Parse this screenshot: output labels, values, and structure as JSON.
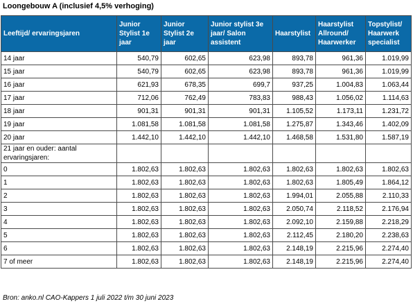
{
  "title": "Loongebouw A (inclusief 4,5% verhoging)",
  "headers": [
    "Leeftijd/ ervaringsjaren",
    "Junior Stylist 1e jaar",
    "Junior Stylist 2e jaar",
    "Junior stylist 3e jaar/ Salon assistent",
    "Haarstylist",
    "Haarstylist Allround/ Haarwerker",
    "Topstylist/ Haarwerk specialist"
  ],
  "rows": [
    [
      "14 jaar",
      "540,79",
      "602,65",
      "623,98",
      "893,78",
      "961,36",
      "1.019,99"
    ],
    [
      "15 jaar",
      "540,79",
      "602,65",
      "623,98",
      "893,78",
      "961,36",
      "1.019,99"
    ],
    [
      "16 jaar",
      "621,93",
      "678,35",
      "699,7",
      "937,25",
      "1.004,83",
      "1.063,44"
    ],
    [
      "17 jaar",
      "712,06",
      "762,49",
      "783,83",
      "988,43",
      "1.056,02",
      "1.114,63"
    ],
    [
      "18 jaar",
      "901,31",
      "901,31",
      "901,31",
      "1.105,52",
      "1.173,11",
      "1.231,72"
    ],
    [
      "19 jaar",
      "1.081,58",
      "1.081,58",
      "1.081,58",
      "1.275,87",
      "1.343,46",
      "1.402,09"
    ],
    [
      "20 jaar",
      "1.442,10",
      "1.442,10",
      "1.442,10",
      "1.468,58",
      "1.531,80",
      "1.587,19"
    ],
    [
      "21 jaar en ouder: aantal ervaringsjaren:",
      "",
      "",
      "",
      "",
      "",
      ""
    ],
    [
      "0",
      "1.802,63",
      "1.802,63",
      "1.802,63",
      "1.802,63",
      "1.802,63",
      "1.802,63"
    ],
    [
      "1",
      "1.802,63",
      "1.802,63",
      "1.802,63",
      "1.802,63",
      "1.805,49",
      "1.864,12"
    ],
    [
      "2",
      "1.802,63",
      "1.802,63",
      "1.802,63",
      "1.994,01",
      "2.055,88",
      "2.110,33"
    ],
    [
      "3",
      "1.802,63",
      "1.802,63",
      "1.802,63",
      "2.050,74",
      "2.118,52",
      "2.176,94"
    ],
    [
      "4",
      "1.802,63",
      "1.802,63",
      "1.802,63",
      "2.092,10",
      "2.159,88",
      "2.218,29"
    ],
    [
      "5",
      "1.802,63",
      "1.802,63",
      "1.802,63",
      "2.112,45",
      "2.180,20",
      "2.238,63"
    ],
    [
      "6",
      "1.802,63",
      "1.802,63",
      "1.802,63",
      "2.148,19",
      "2.215,96",
      "2.274,40"
    ],
    [
      "7 of meer",
      "1.802,63",
      "1.802,63",
      "1.802,63",
      "2.148,19",
      "2.215,96",
      "2.274,40"
    ]
  ],
  "source": "Bron: anko.nl CAO-Kappers 1 juli 2022 t/m 30 juni 2023"
}
